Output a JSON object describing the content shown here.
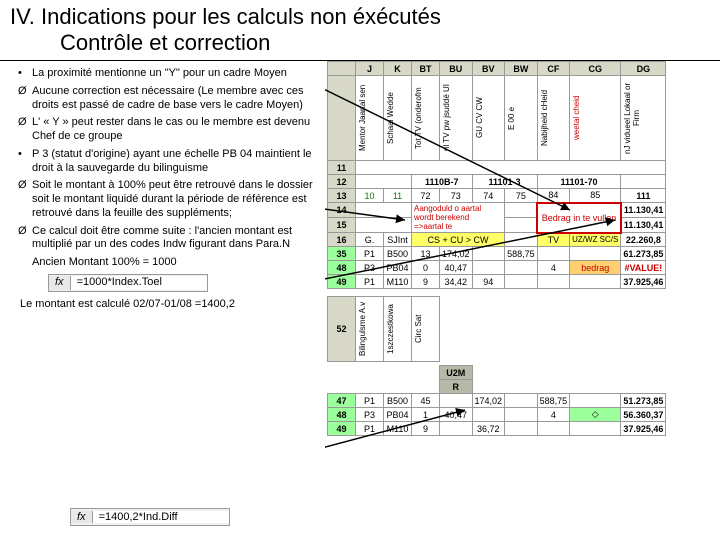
{
  "title_main": "IV.  Indications pour les calculs non éxécutés",
  "title_sub": "Contrôle et correction",
  "bullets": [
    {
      "mark": "•",
      "text": "La proximité mentionne un \"Y\" pour un cadre Moyen"
    },
    {
      "mark": "Ø",
      "text": "Aucune correction est nécessaire (Le membre avec ces droits est passé de cadre de base vers le cadre Moyen)"
    },
    {
      "mark": "Ø",
      "text": "L' « Y » peut rester dans le cas ou le membre est devenu Chef de ce groupe"
    },
    {
      "mark": "•",
      "text": "P 3 (statut d'origine) ayant une échelle PB 04 maintient le droit à la sauvegarde du bilinguisme"
    },
    {
      "mark": "Ø",
      "text": "Soit le montant à 100% peut être retrouvé dans le dossier soit le montant liquidé durant la période de référence est retrouvé dans la feuille des suppléments;"
    },
    {
      "mark": "Ø",
      "text": "Ce calcul doit être comme suite : l'ancien montant est multiplié par un des codes Indw figurant dans Para.N"
    },
    {
      "mark": "",
      "text": "Ancien Montant 100% = 1000"
    }
  ],
  "fx1": "=1000*Index.Toel",
  "calc_note": "Le montant est calculé 02/07-01/08 =1400,2",
  "fx2": "=1400,2*Ind.Diff",
  "cols": [
    "",
    "J",
    "K",
    "BT",
    "BU",
    "BV",
    "BW",
    "CF",
    "CG",
    "DG"
  ],
  "vheaders": [
    "Mentor Jaartal sen",
    "Schaal Wedde",
    "Tot TV (onderofm",
    "nl TV pw jsuddé UI",
    "GU CV CW",
    "E 00 e",
    "Nabijheid cHeid",
    "weetal cheid",
    "nJ vidueel Lokaal or Firm"
  ],
  "row_group1": {
    "cells": [
      "1110B-7",
      "11101-3",
      "11101-70"
    ]
  },
  "row13": [
    "13",
    "10",
    "11",
    "72",
    "73",
    "74",
    "75",
    "84",
    "85",
    "111"
  ],
  "redtext1": "Aangoduld o aartal",
  "redtext2": "wordt berekend",
  "redtext3": "=>aartal te",
  "bedrag": "Bedrag in te vullen",
  "row14v": "11.130,41",
  "row15v": "11.130,41",
  "row16a": [
    "16",
    "G.",
    "SJInt",
    "",
    "CS + CU > CW",
    "",
    "TV",
    "UZ/WZ SC/S",
    "22.260,8"
  ],
  "row35": [
    "35",
    "P1",
    "B500",
    "13",
    "174,02",
    "",
    "588,75",
    "",
    "",
    "61.273,85"
  ],
  "row48": [
    "48",
    "P3",
    "PB04",
    "0",
    "40,47",
    "",
    "",
    "4",
    "bedrag",
    "#VALUE!"
  ],
  "row49": [
    "49",
    "P1",
    "M110",
    "9",
    "34,42",
    "94",
    "",
    "",
    "",
    "37.925,46"
  ],
  "vheaders2": [
    "Bilingulsme A.v",
    "1szczestkowa",
    "Circ Sat"
  ],
  "bot47": [
    "47",
    "P1",
    "B500",
    "45",
    "",
    "174,02",
    "",
    "588,75",
    "",
    "51.273,85"
  ],
  "bot48": [
    "48",
    "P3",
    "PB04",
    "1",
    "40,47",
    "",
    "",
    "4",
    "◇",
    "56.360,37"
  ],
  "bot49": [
    "49",
    "P1",
    "M110",
    "9",
    "",
    "36,72",
    "",
    "",
    "",
    "37.925,46"
  ],
  "colors": {
    "green": "#0a7a0a",
    "red": "#c00000",
    "yellow": "#ffff66",
    "lgreen": "#9bff9b",
    "orange": "#ffd070"
  }
}
